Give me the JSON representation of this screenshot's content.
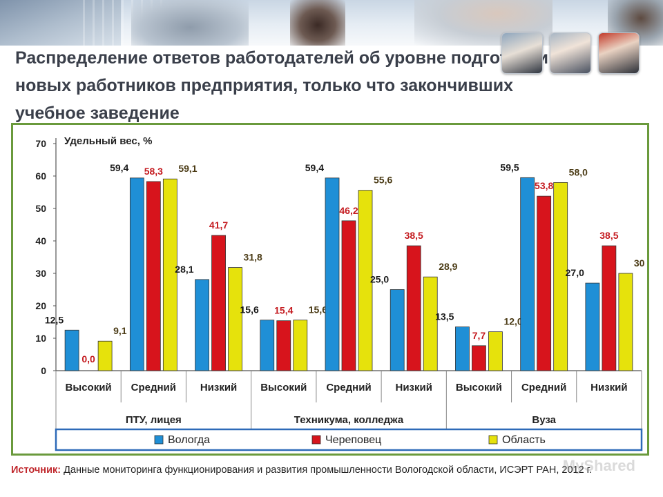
{
  "slide": {
    "title": "Распределение ответов работодателей об уровне подготовки новых работников предприятия, только что закончивших учебное заведение"
  },
  "source": {
    "label": "Источник:",
    "text": " Данные мониторинга функционирования и развития промышленности Вологодской области, ИСЭРТ РАН, 2012 г."
  },
  "watermark": "MyShared",
  "chart_data": {
    "type": "bar",
    "ylabel": "Удельный вес, %",
    "ylim": [
      0,
      70
    ],
    "yticks": [
      "0",
      "10",
      "20",
      "30",
      "40",
      "50",
      "60",
      "70"
    ],
    "categories": [
      "Высокий",
      "Средний",
      "Низкий",
      "Высокий",
      "Средний",
      "Низкий",
      "Высокий",
      "Средний",
      "Низкий"
    ],
    "groups": [
      "ПТУ, лицея",
      "Техникума, колледжа",
      "Вуза"
    ],
    "series": [
      {
        "name": "Вологда",
        "color": "#1f8fd6",
        "values": [
          12.5,
          59.4,
          28.1,
          15.6,
          59.4,
          25.0,
          13.5,
          59.5,
          27.0
        ],
        "labels": [
          "12,5",
          "59,4",
          "28,1",
          "15,6",
          "59,4",
          "25,0",
          "13,5",
          "59,5",
          "27,0"
        ]
      },
      {
        "name": "Череповец",
        "color": "#d7141c",
        "values": [
          0.0,
          58.3,
          41.7,
          15.4,
          46.2,
          38.5,
          7.7,
          53.8,
          38.5
        ],
        "labels": [
          "0,0",
          "58,3",
          "41,7",
          "15,4",
          "46,2",
          "38,5",
          "7,7",
          "53,8",
          "38,5"
        ]
      },
      {
        "name": "Область",
        "color": "#e6e20c",
        "values": [
          9.1,
          59.1,
          31.8,
          15.6,
          55.6,
          28.9,
          12.0,
          58.0,
          30
        ],
        "labels": [
          "9,1",
          "59,1",
          "31,8",
          "15,6",
          "55,6",
          "28,9",
          "12,0",
          "58,0",
          "30"
        ]
      }
    ],
    "legend_position": "bottom",
    "grid": false
  }
}
